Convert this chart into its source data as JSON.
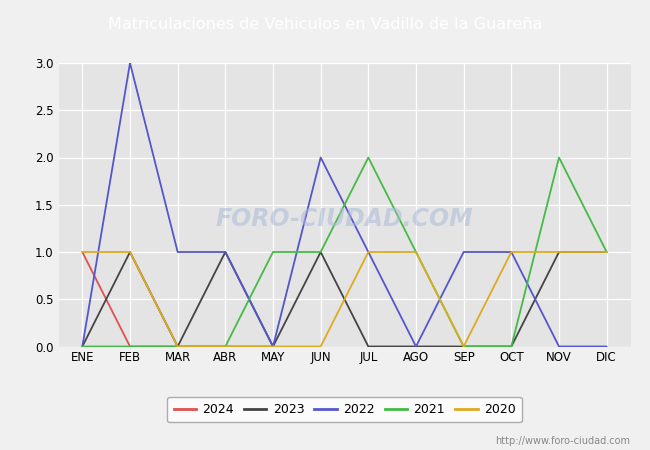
{
  "title": "Matriculaciones de Vehiculos en Vadillo de la Guareña",
  "title_bg_color": "#4070c0",
  "title_text_color": "#ffffff",
  "months": [
    "ENE",
    "FEB",
    "MAR",
    "ABR",
    "MAY",
    "JUN",
    "JUL",
    "AGO",
    "SEP",
    "OCT",
    "NOV",
    "DIC"
  ],
  "series": {
    "2024": {
      "color": "#e05050",
      "data": [
        1,
        0,
        0,
        0,
        0,
        null,
        null,
        null,
        null,
        null,
        null,
        null
      ]
    },
    "2023": {
      "color": "#444444",
      "data": [
        0,
        1,
        0,
        1,
        0,
        1,
        0,
        0,
        0,
        0,
        1,
        1
      ]
    },
    "2022": {
      "color": "#5555cc",
      "data": [
        0,
        3,
        1,
        1,
        0,
        2,
        1,
        0,
        1,
        1,
        0,
        0
      ]
    },
    "2021": {
      "color": "#44bb44",
      "data": [
        0,
        0,
        0,
        0,
        1,
        1,
        2,
        1,
        0,
        0,
        2,
        1
      ]
    },
    "2020": {
      "color": "#ddaa22",
      "data": [
        1,
        1,
        0,
        0,
        0,
        0,
        1,
        1,
        0,
        1,
        1,
        1
      ]
    }
  },
  "ylim": [
    0.0,
    3.0
  ],
  "yticks": [
    0.0,
    0.5,
    1.0,
    1.5,
    2.0,
    2.5,
    3.0
  ],
  "plot_bg_color": "#e4e4e4",
  "grid_color": "#ffffff",
  "fig_bg_color": "#f0f0f0",
  "watermark_text": "http://www.foro-ciudad.com",
  "watermark_chart": "FORO-CIUDAD.COM",
  "legend_order": [
    "2024",
    "2023",
    "2022",
    "2021",
    "2020"
  ]
}
